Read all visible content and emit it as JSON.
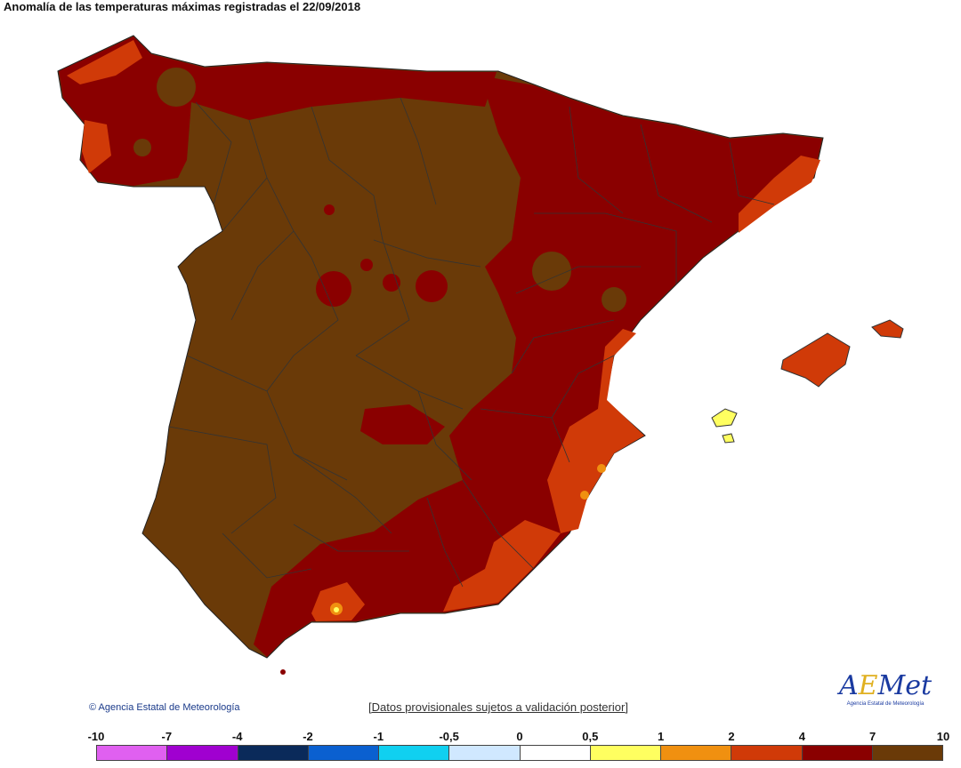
{
  "title": "Anomalía de las temperaturas máximas registradas el 22/09/2018",
  "copyright": "© Agencia Estatal de Meteorología",
  "disclaimer": "[Datos provisionales sujetos a validación posterior]",
  "logo": {
    "text": "AEMet",
    "subtitle": "Agencia Estatal de Meteorología"
  },
  "legend": {
    "ticks": [
      "-10",
      "-7",
      "-4",
      "-2",
      "-1",
      "-0,5",
      "0",
      "0,5",
      "1",
      "2",
      "4",
      "7",
      "10"
    ],
    "colors": [
      "#e060f0",
      "#a000d0",
      "#0a2a5a",
      "#0a60d0",
      "#10d0f0",
      "#d0e8ff",
      "#ffffff",
      "#ffff60",
      "#f09010",
      "#d03a08",
      "#8a0000",
      "#6a3a08"
    ]
  },
  "colors": {
    "brown": "#6a3a08",
    "darkred": "#8a0000",
    "orange": "#d03a08",
    "lightorange": "#f09010",
    "yellow": "#ffff60"
  }
}
